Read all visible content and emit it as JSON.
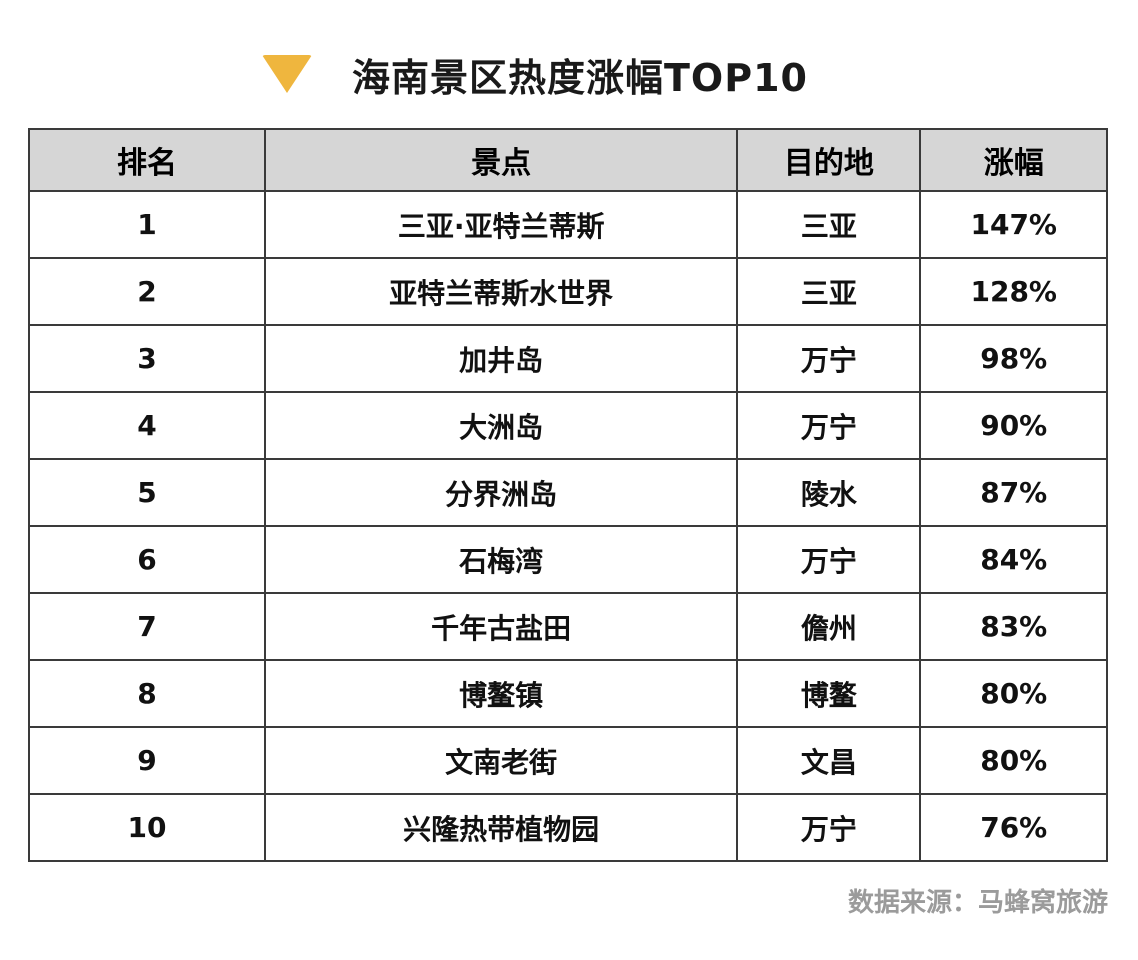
{
  "chart_data": {
    "type": "table",
    "title": "海南景区热度涨幅TOP10",
    "columns": [
      "排名",
      "景点",
      "目的地",
      "涨幅"
    ],
    "rows": [
      [
        "1",
        "三亚·亚特兰蒂斯",
        "三亚",
        "147%"
      ],
      [
        "2",
        "亚特兰蒂斯水世界",
        "三亚",
        "128%"
      ],
      [
        "3",
        "加井岛",
        "万宁",
        "98%"
      ],
      [
        "4",
        "大洲岛",
        "万宁",
        "90%"
      ],
      [
        "5",
        "分界洲岛",
        "陵水",
        "87%"
      ],
      [
        "6",
        "石梅湾",
        "万宁",
        "84%"
      ],
      [
        "7",
        "千年古盐田",
        "儋州",
        "83%"
      ],
      [
        "8",
        "博鳌镇",
        "博鳌",
        "80%"
      ],
      [
        "9",
        "文南老街",
        "文昌",
        "80%"
      ],
      [
        "10",
        "兴隆热带植物园",
        "万宁",
        "76%"
      ]
    ],
    "source": "数据来源：马蜂窝旅游",
    "legend_position": "none",
    "grid": "full-borders"
  },
  "icons": {
    "title_marker": "triangle-down-icon"
  },
  "colors": {
    "accent_triangle": "#EFB63E",
    "header_background": "#D6D6D6",
    "table_border": "#3A3A3A",
    "body_text": "#111111",
    "source_text": "#9B9B9B",
    "page_background": "#FFFFFF"
  }
}
